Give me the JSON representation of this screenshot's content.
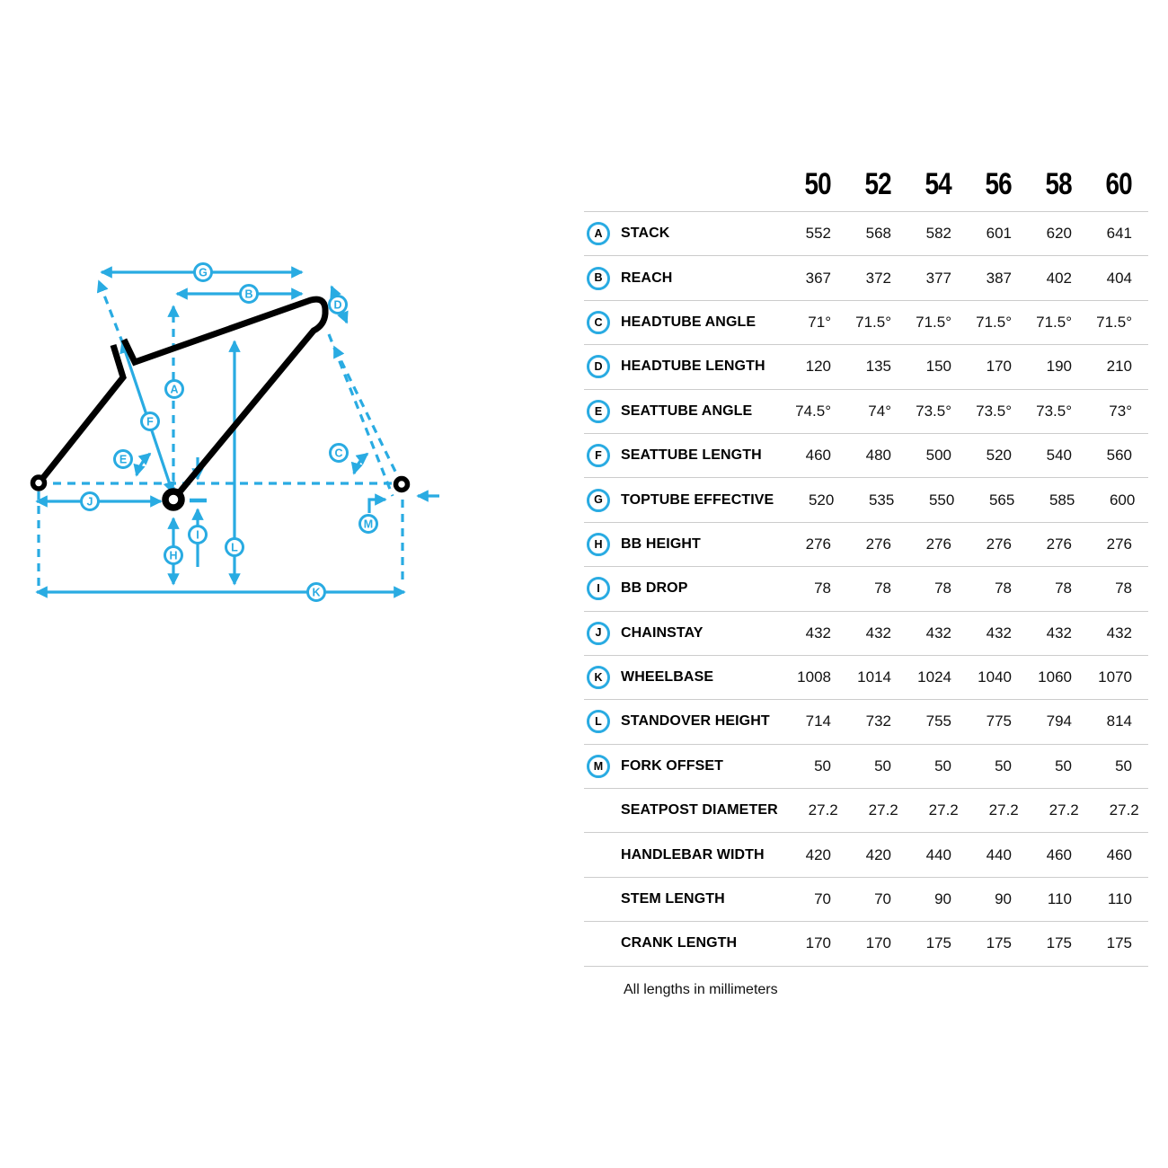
{
  "colors": {
    "accent": "#29abe2",
    "frame": "#000000",
    "separator": "#cccccc",
    "text": "#000000"
  },
  "diagram": {
    "callouts": [
      "A",
      "B",
      "C",
      "D",
      "E",
      "F",
      "G",
      "H",
      "I",
      "J",
      "K",
      "L",
      "M"
    ]
  },
  "table": {
    "sizes": [
      "50",
      "52",
      "54",
      "56",
      "58",
      "60"
    ],
    "rows": [
      {
        "letter": "A",
        "label": "STACK",
        "values": [
          "552",
          "568",
          "582",
          "601",
          "620",
          "641"
        ]
      },
      {
        "letter": "B",
        "label": "REACH",
        "values": [
          "367",
          "372",
          "377",
          "387",
          "402",
          "404"
        ]
      },
      {
        "letter": "C",
        "label": "HEADTUBE ANGLE",
        "values": [
          "71°",
          "71.5°",
          "71.5°",
          "71.5°",
          "71.5°",
          "71.5°"
        ]
      },
      {
        "letter": "D",
        "label": "HEADTUBE LENGTH",
        "values": [
          "120",
          "135",
          "150",
          "170",
          "190",
          "210"
        ]
      },
      {
        "letter": "E",
        "label": "SEATTUBE ANGLE",
        "values": [
          "74.5°",
          "74°",
          "73.5°",
          "73.5°",
          "73.5°",
          "73°"
        ]
      },
      {
        "letter": "F",
        "label": "SEATTUBE LENGTH",
        "values": [
          "460",
          "480",
          "500",
          "520",
          "540",
          "560"
        ]
      },
      {
        "letter": "G",
        "label": "TOPTUBE EFFECTIVE",
        "values": [
          "520",
          "535",
          "550",
          "565",
          "585",
          "600"
        ]
      },
      {
        "letter": "H",
        "label": "BB HEIGHT",
        "values": [
          "276",
          "276",
          "276",
          "276",
          "276",
          "276"
        ]
      },
      {
        "letter": "I",
        "label": "BB DROP",
        "values": [
          "78",
          "78",
          "78",
          "78",
          "78",
          "78"
        ]
      },
      {
        "letter": "J",
        "label": "CHAINSTAY",
        "values": [
          "432",
          "432",
          "432",
          "432",
          "432",
          "432"
        ]
      },
      {
        "letter": "K",
        "label": "WHEELBASE",
        "values": [
          "1008",
          "1014",
          "1024",
          "1040",
          "1060",
          "1070"
        ]
      },
      {
        "letter": "L",
        "label": "STANDOVER HEIGHT",
        "values": [
          "714",
          "732",
          "755",
          "775",
          "794",
          "814"
        ]
      },
      {
        "letter": "M",
        "label": "FORK OFFSET",
        "values": [
          "50",
          "50",
          "50",
          "50",
          "50",
          "50"
        ]
      },
      {
        "letter": "",
        "label": "SEATPOST DIAMETER",
        "values": [
          "27.2",
          "27.2",
          "27.2",
          "27.2",
          "27.2",
          "27.2"
        ]
      },
      {
        "letter": "",
        "label": "HANDLEBAR WIDTH",
        "values": [
          "420",
          "420",
          "440",
          "440",
          "460",
          "460"
        ]
      },
      {
        "letter": "",
        "label": "STEM LENGTH",
        "values": [
          "70",
          "70",
          "90",
          "90",
          "110",
          "110"
        ]
      },
      {
        "letter": "",
        "label": "CRANK LENGTH",
        "values": [
          "170",
          "170",
          "175",
          "175",
          "175",
          "175"
        ]
      }
    ],
    "footnote": "All lengths in millimeters"
  }
}
